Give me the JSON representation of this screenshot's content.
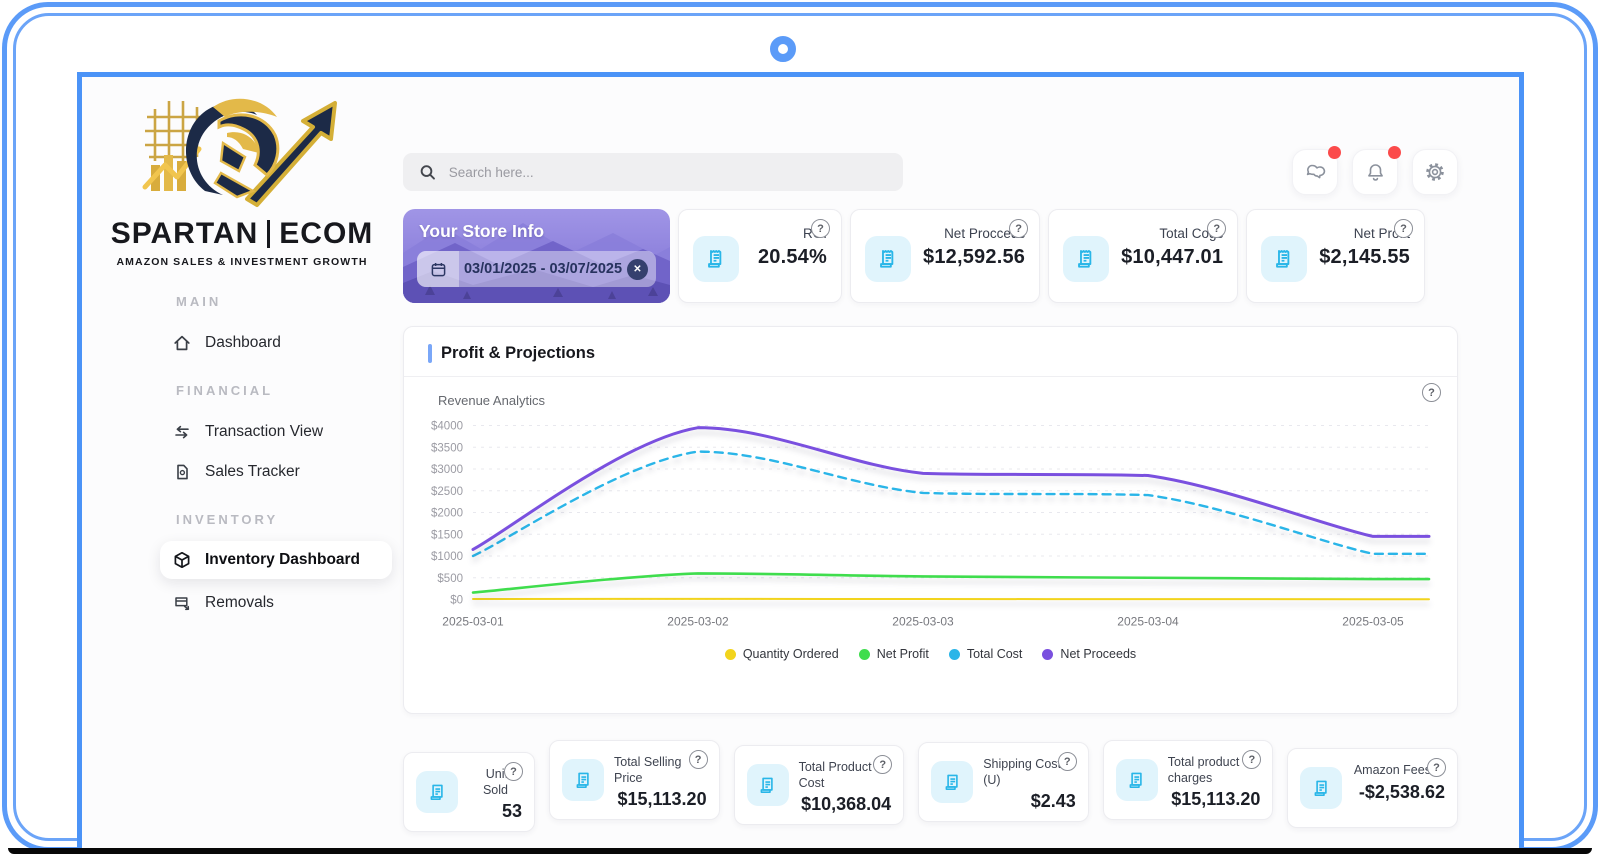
{
  "icons": {
    "help": "?",
    "clear": "✕"
  },
  "sidebar": {
    "brand": {
      "left": "SPARTAN",
      "right": "ECOM",
      "tagline": "AMAZON SALES & INVESTMENT GROWTH"
    },
    "sections": [
      {
        "label": "MAIN",
        "items": [
          {
            "label": "Dashboard",
            "active": false
          }
        ]
      },
      {
        "label": "FINANCIAL",
        "items": [
          {
            "label": "Transaction View",
            "active": false
          },
          {
            "label": "Sales Tracker",
            "active": false
          }
        ]
      },
      {
        "label": "INVENTORY",
        "items": [
          {
            "label": "Inventory Dashboard",
            "active": true
          },
          {
            "label": "Removals",
            "active": false
          }
        ]
      }
    ]
  },
  "header": {
    "search_placeholder": "Search here..."
  },
  "store_info": {
    "title": "Your Store Info",
    "date_range": "03/01/2025 - 03/07/2025"
  },
  "top_stats": [
    {
      "label": "ROI",
      "value": "20.54%"
    },
    {
      "label": "Net Procceds",
      "value": "$12,592.56"
    },
    {
      "label": "Total Cogs",
      "value": "$10,447.01"
    },
    {
      "label": "Net Profit",
      "value": "$2,145.55"
    }
  ],
  "chart_section": {
    "title": "Profit & Projections",
    "subtitle": "Revenue Analytics"
  },
  "chart_data": {
    "type": "line",
    "title": "Revenue Analytics",
    "x": [
      "2025-03-01",
      "2025-03-02",
      "2025-03-03",
      "2025-03-04",
      "2025-03-05"
    ],
    "series": [
      {
        "name": "Quantity Ordered",
        "color": "#f2d41d",
        "dashed": false,
        "width": 2,
        "values": [
          12,
          15,
          11,
          9,
          6
        ]
      },
      {
        "name": "Net Profit",
        "color": "#3fdd4d",
        "dashed": false,
        "width": 2.6,
        "values": [
          160,
          600,
          530,
          500,
          470
        ]
      },
      {
        "name": "Total Cost",
        "color": "#2ab5e8",
        "dashed": true,
        "width": 2.4,
        "values": [
          1000,
          3400,
          2450,
          2400,
          1050
        ]
      },
      {
        "name": "Net Proceeds",
        "color": "#7a50df",
        "dashed": false,
        "width": 3,
        "values": [
          1150,
          3950,
          2900,
          2850,
          1450
        ]
      }
    ],
    "ylim": [
      0,
      4000
    ],
    "ytick_step": 500,
    "ytick_prefix": "$",
    "grid": "horizontal-dashed",
    "legend_position": "bottom"
  },
  "bottom_stats": [
    {
      "label": "Unit Sold",
      "value": "53"
    },
    {
      "label": "Total Selling Price",
      "value": "$15,113.20"
    },
    {
      "label": "Total Product Cost",
      "value": "$10,368.04"
    },
    {
      "label": "Shipping Cost (U)",
      "value": "$2.43"
    },
    {
      "label": "Total product charges",
      "value": "$15,113.20"
    },
    {
      "label": "Amazon Fees",
      "value": "-$2,538.62"
    }
  ]
}
